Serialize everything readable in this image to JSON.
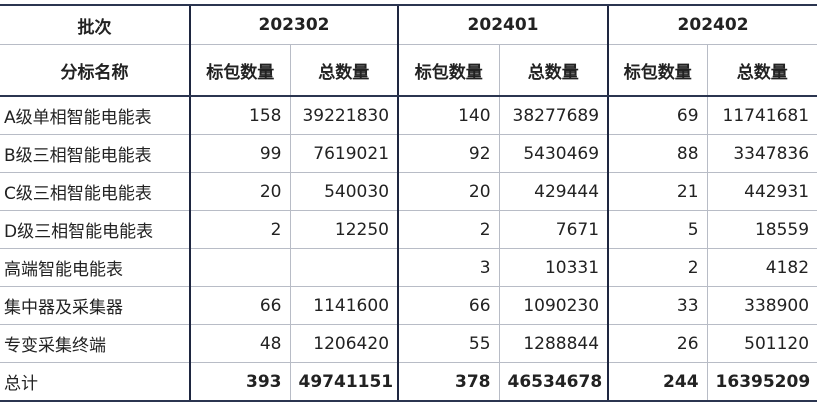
{
  "header": {
    "batch_label": "批次",
    "name_label": "分标名称",
    "batches": [
      "202302",
      "202401",
      "202402"
    ],
    "sub_headers": [
      "标包数量",
      "总数量"
    ]
  },
  "rows": [
    {
      "name": "A级单相智能电能表",
      "values": [
        "158",
        "39221830",
        "140",
        "38277689",
        "69",
        "11741681"
      ]
    },
    {
      "name": "B级三相智能电能表",
      "values": [
        "99",
        "7619021",
        "92",
        "5430469",
        "88",
        "3347836"
      ]
    },
    {
      "name": "C级三相智能电能表",
      "values": [
        "20",
        "540030",
        "20",
        "429444",
        "21",
        "442931"
      ]
    },
    {
      "name": "D级三相智能电能表",
      "values": [
        "2",
        "12250",
        "2",
        "7671",
        "5",
        "18559"
      ]
    },
    {
      "name": "高端智能电能表",
      "values": [
        "",
        "",
        "3",
        "10331",
        "2",
        "4182"
      ]
    },
    {
      "name": "集中器及采集器",
      "values": [
        "66",
        "1141600",
        "66",
        "1090230",
        "33",
        "338900"
      ]
    },
    {
      "name": "专变采集终端",
      "values": [
        "48",
        "1206420",
        "55",
        "1288844",
        "26",
        "501120"
      ]
    }
  ],
  "total": {
    "name": "总计",
    "values": [
      "393",
      "49741151",
      "378",
      "46534678",
      "244",
      "16395209"
    ]
  }
}
